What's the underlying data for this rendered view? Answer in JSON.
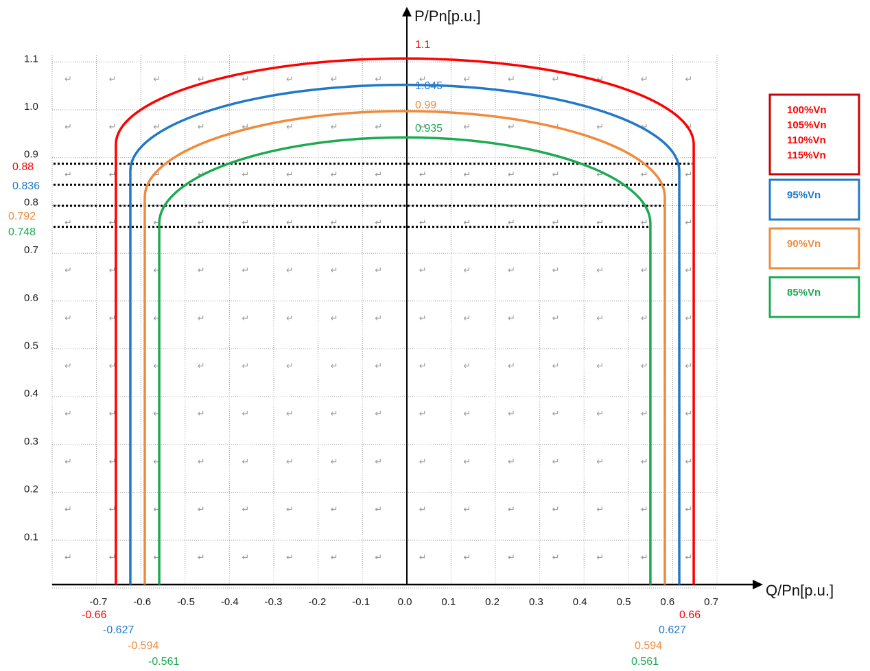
{
  "chart_data": {
    "type": "line",
    "title": "",
    "xlabel": "Q/Pn[p.u.]",
    "ylabel": "P/Pn[p.u.]",
    "xlim": [
      -0.78,
      0.7
    ],
    "ylim": [
      0,
      1.1
    ],
    "grid": true,
    "x_ticks": [
      "-0.7",
      "-0.6",
      "-0.5",
      "-0.4",
      "-0.3",
      "-0.2",
      "-0.1",
      "0.0",
      "0.1",
      "0.2",
      "0.3",
      "0.4",
      "0.5",
      "0.6",
      "0.7"
    ],
    "y_ticks": [
      "0.1",
      "0.2",
      "0.3",
      "0.4",
      "0.5",
      "0.6",
      "0.7",
      "0.8",
      "0.9",
      "1.0",
      "1.1"
    ],
    "series": [
      {
        "name": "100%Vn / 105%Vn / 110%Vn / 115%Vn",
        "color": "#ff0000",
        "q_min": -0.66,
        "q_max": 0.66,
        "p_max": 1.1,
        "p_corner": 0.88,
        "p_max_label": "1.1",
        "p_corner_label": "0.88",
        "q_min_label": "-0.66",
        "q_max_label": "0.66"
      },
      {
        "name": "95%Vn",
        "color": "#1f78c8",
        "q_min": -0.627,
        "q_max": 0.627,
        "p_max": 1.045,
        "p_corner": 0.836,
        "p_max_label": "1.045",
        "p_corner_label": "0.836",
        "q_min_label": "-0.627",
        "q_max_label": "0.627"
      },
      {
        "name": "90%Vn",
        "color": "#f08a3c",
        "q_min": -0.594,
        "q_max": 0.594,
        "p_max": 0.99,
        "p_corner": 0.792,
        "p_max_label": "0.99",
        "p_corner_label": "0.792",
        "q_min_label": "-0.594",
        "q_max_label": "0.594"
      },
      {
        "name": "85%Vn",
        "color": "#1aaa50",
        "q_min": -0.561,
        "q_max": 0.561,
        "p_max": 0.935,
        "p_corner": 0.748,
        "p_max_label": "0.935",
        "p_corner_label": "0.748",
        "q_min_label": "-0.561",
        "q_max_label": "0.561"
      }
    ],
    "legend": [
      {
        "color": "#cc0000",
        "text_color": "#ff0000",
        "lines": [
          "100%Vn",
          "105%Vn",
          "110%Vn",
          "115%Vn"
        ]
      },
      {
        "color": "#1f78c8",
        "text_color": "#1f78c8",
        "lines": [
          "95%Vn"
        ]
      },
      {
        "color": "#f08a3c",
        "text_color": "#f08a3c",
        "lines": [
          "90%Vn"
        ]
      },
      {
        "color": "#1aaa50",
        "text_color": "#1aaa50",
        "lines": [
          "85%Vn"
        ]
      }
    ],
    "legend_position": "right"
  }
}
